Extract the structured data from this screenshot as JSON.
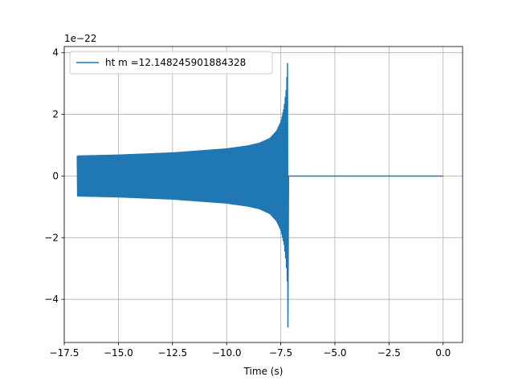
{
  "chart_data": {
    "type": "line",
    "title": "",
    "xlabel": "Time (s)",
    "ylabel": "",
    "y_offset_text": "1e−22",
    "xlim": [
      -17.5,
      0.9
    ],
    "ylim": [
      -5.4,
      4.2
    ],
    "xticks": [
      -17.5,
      -15.0,
      -12.5,
      -10.0,
      -7.5,
      -5.0,
      -2.5,
      0.0
    ],
    "xtick_labels": [
      "−17.5",
      "−15.0",
      "−12.5",
      "−10.0",
      "−7.5",
      "−5.0",
      "−2.5",
      "0.0"
    ],
    "yticks": [
      -4,
      -2,
      0,
      2,
      4
    ],
    "ytick_labels": [
      "−4",
      "−2",
      "0",
      "2",
      "4"
    ],
    "grid": true,
    "legend_position": "top-left",
    "color": "#1f77b4",
    "series": [
      {
        "name": "ht m =12.148245901884328",
        "start_time": -16.9,
        "merger_time": -7.15,
        "end_time": 0.0,
        "envelope_x": [
          -16.9,
          -15.0,
          -12.5,
          -10.0,
          -9.0,
          -8.5,
          -8.0,
          -7.7,
          -7.5,
          -7.35,
          -7.25,
          -7.2,
          -7.17
        ],
        "envelope_y": [
          0.65,
          0.68,
          0.75,
          0.88,
          0.98,
          1.06,
          1.22,
          1.45,
          1.75,
          2.2,
          2.8,
          3.4,
          3.65
        ],
        "negative_peak": -4.9
      }
    ]
  }
}
